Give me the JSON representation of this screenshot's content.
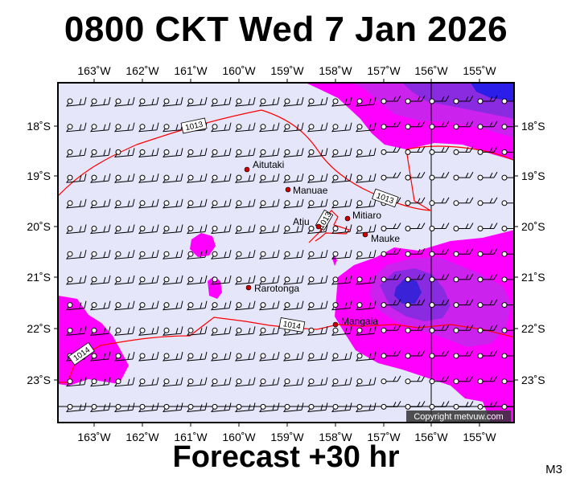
{
  "header": {
    "title": "0800 CKT Wed 7 Jan 2026"
  },
  "footer": {
    "forecast": "Forecast +30 hr",
    "model": "M3"
  },
  "map": {
    "copyright": "Copyright metvuw.com",
    "lon_ticks": [
      "163˚W",
      "162˚W",
      "161˚W",
      "160˚W",
      "159˚W",
      "158˚W",
      "157˚W",
      "156˚W",
      "155˚W"
    ],
    "lat_ticks": [
      "18˚S",
      "19˚S",
      "20˚S",
      "21˚S",
      "22˚S",
      "23˚S"
    ],
    "places": [
      "Aitutaki",
      "Manuae",
      "Atiu",
      "Mitiaro",
      "Mauke",
      "Rarotonga",
      "Mangaia"
    ],
    "isobar_labels": [
      "1013",
      "1013",
      "1013",
      "1014",
      "1014"
    ],
    "colors": {
      "ocean": "#e6e6fa",
      "rain_light": "#ff00ff",
      "rain_medium": "#cc22ee",
      "rain_heavy": "#8a2be2",
      "rain_extreme": "#2a1ee8",
      "isobar": "#ff0000",
      "place_dot": "#cc0000"
    }
  }
}
